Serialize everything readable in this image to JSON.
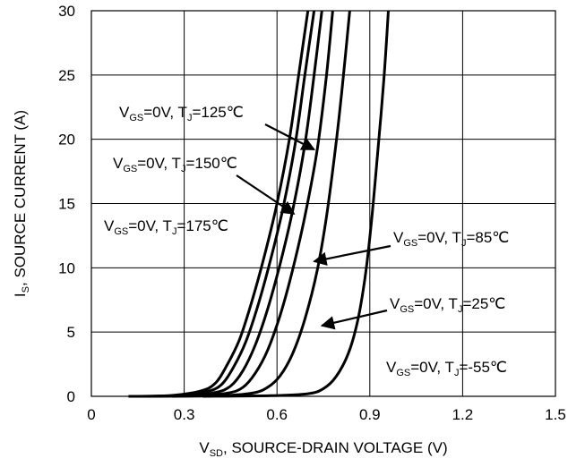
{
  "chart_data": {
    "type": "line",
    "xlabel": {
      "main": "V",
      "sub": "SD",
      "rest": ", SOURCE-DRAIN VOLTAGE (V)"
    },
    "ylabel": {
      "main": "I",
      "sub": "S",
      "rest": ", SOURCE CURRENT (A)"
    },
    "xlim": [
      0,
      1.5
    ],
    "ylim": [
      0,
      30
    ],
    "x_ticks": [
      "0",
      "0.3",
      "0.6",
      "0.9",
      "1.2",
      "1.5"
    ],
    "y_ticks": [
      "0",
      "5",
      "10",
      "15",
      "20",
      "25",
      "30"
    ],
    "grid": true,
    "series": [
      {
        "name": "VGS=0V, TJ=175℃",
        "x": [
          0.12,
          0.25,
          0.35,
          0.4,
          0.44,
          0.48,
          0.52,
          0.56,
          0.6,
          0.64,
          0.67,
          0.7
        ],
        "y": [
          0,
          0.05,
          0.4,
          1.0,
          2.5,
          4.5,
          7.5,
          11,
          15,
          20,
          25,
          30
        ]
      },
      {
        "name": "VGS=0V, TJ=150℃",
        "x": [
          0.14,
          0.27,
          0.37,
          0.42,
          0.46,
          0.5,
          0.54,
          0.58,
          0.62,
          0.66,
          0.69,
          0.72
        ],
        "y": [
          0,
          0.05,
          0.35,
          0.9,
          2.3,
          4.3,
          7.2,
          10.7,
          14.7,
          19.8,
          25,
          30
        ]
      },
      {
        "name": "VGS=0V, TJ=125℃",
        "x": [
          0.16,
          0.3,
          0.4,
          0.45,
          0.49,
          0.53,
          0.57,
          0.61,
          0.65,
          0.69,
          0.72,
          0.745
        ],
        "y": [
          0,
          0.05,
          0.3,
          0.8,
          2.0,
          4.0,
          6.8,
          10.3,
          14.4,
          19.6,
          25,
          30
        ]
      },
      {
        "name": "VGS=0V, TJ=85℃",
        "x": [
          0.2,
          0.34,
          0.44,
          0.49,
          0.53,
          0.57,
          0.61,
          0.65,
          0.69,
          0.73,
          0.76,
          0.78
        ],
        "y": [
          0,
          0.05,
          0.25,
          0.7,
          1.8,
          3.6,
          6.3,
          9.8,
          14,
          19.2,
          25,
          30
        ]
      },
      {
        "name": "VGS=0V, TJ=25℃",
        "x": [
          0.26,
          0.42,
          0.52,
          0.57,
          0.61,
          0.65,
          0.69,
          0.73,
          0.76,
          0.79,
          0.815,
          0.835
        ],
        "y": [
          0,
          0.05,
          0.25,
          0.7,
          1.6,
          3.3,
          6.0,
          9.8,
          14,
          19.5,
          25,
          30
        ]
      },
      {
        "name": "VGS=0V, TJ=-55℃",
        "x": [
          0.36,
          0.58,
          0.7,
          0.75,
          0.79,
          0.83,
          0.86,
          0.885,
          0.905,
          0.925,
          0.945,
          0.96
        ],
        "y": [
          0,
          0.05,
          0.2,
          0.6,
          1.5,
          3.3,
          5.8,
          9.3,
          13.5,
          18.8,
          24.5,
          30
        ]
      }
    ],
    "annotations": [
      {
        "id": "125",
        "main": "V",
        "sub": "GS",
        "mid": "=0V, T",
        "sub2": "J",
        "rest": "=125℃",
        "arrow_to": [
          0.72,
          19.2
        ]
      },
      {
        "id": "150",
        "main": "V",
        "sub": "GS",
        "mid": "=0V, T",
        "sub2": "J",
        "rest": "=150℃",
        "arrow_to": [
          0.655,
          14.2
        ]
      },
      {
        "id": "175",
        "main": "V",
        "sub": "GS",
        "mid": "=0V, T",
        "sub2": "J",
        "rest": "=175℃",
        "arrow_to": null
      },
      {
        "id": "85",
        "main": "V",
        "sub": "GS",
        "mid": "=0V, T",
        "sub2": "J",
        "rest": "=85℃",
        "arrow_to": [
          0.72,
          10.5
        ]
      },
      {
        "id": "25",
        "main": "V",
        "sub": "GS",
        "mid": "=0V, T",
        "sub2": "J",
        "rest": "=25℃",
        "arrow_to": [
          0.745,
          5.5
        ]
      },
      {
        "id": "-55",
        "main": "V",
        "sub": "GS",
        "mid": "=0V, T",
        "sub2": "J",
        "rest": "=-55℃",
        "arrow_to": null
      }
    ]
  }
}
